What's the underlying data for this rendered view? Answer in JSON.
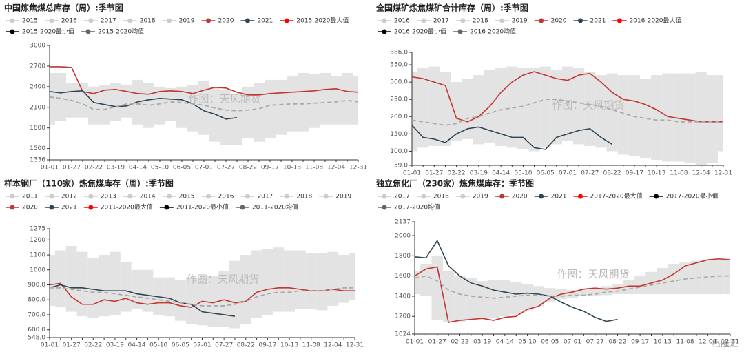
{
  "logo": "格隆汇",
  "chart_data": [
    {
      "type": "line",
      "title": "中国炼焦煤总库存（周）:季节图",
      "watermark": "作图：天风期货",
      "legend": [
        {
          "name": "2015",
          "color": "#cccccc"
        },
        {
          "name": "2016",
          "color": "#cccccc"
        },
        {
          "name": "2017",
          "color": "#cccccc"
        },
        {
          "name": "2018",
          "color": "#cccccc"
        },
        {
          "name": "2019",
          "color": "#cccccc"
        }
      ],
      "categories": [
        "01-01",
        null,
        "01-27",
        null,
        "02-22",
        null,
        "03-19",
        null,
        "04-14",
        null,
        "05-10",
        null,
        "06-05",
        null,
        "07-01",
        null,
        "07-27",
        null,
        "08-22",
        null,
        "09-17",
        null,
        "10-13",
        null,
        "11-08",
        null,
        "12-04",
        null,
        "12-31"
      ],
      "ylim": [
        1336,
        3000
      ],
      "yticks": [
        1336,
        1500,
        1800,
        2100,
        2400,
        2700,
        3000
      ],
      "series": [
        {
          "name": "2020",
          "color": "#c23531",
          "role": "line",
          "values": [
            2690,
            2690,
            2680,
            2330,
            2300,
            2350,
            2360,
            2330,
            2300,
            2290,
            2330,
            2340,
            2330,
            2300,
            2350,
            2390,
            2380,
            2320,
            2280,
            2280,
            2300,
            2310,
            2320,
            2330,
            2340,
            2360,
            2370,
            2330,
            2320
          ]
        },
        {
          "name": "2021",
          "color": "#2f4554",
          "role": "line",
          "values": [
            2330,
            2310,
            2330,
            2340,
            2170,
            2140,
            2110,
            2120,
            2180,
            2210,
            2230,
            2220,
            2210,
            2150,
            2050,
            2000,
            1930,
            1950,
            null,
            null,
            null,
            null,
            null,
            null,
            null,
            null,
            null,
            null,
            null
          ]
        },
        {
          "name": "2015-2020最大值",
          "color": "#ff0000",
          "role": "max",
          "values": [
            2600,
            2600,
            2450,
            2450,
            2400,
            2420,
            2450,
            2430,
            2500,
            2450,
            2400,
            2380,
            2400,
            2420,
            2480,
            2400,
            2350,
            2300,
            2400,
            2450,
            2500,
            2500,
            2560,
            2600,
            2580,
            2600,
            2550,
            2600,
            2550
          ]
        },
        {
          "name": "2015-2020最小值",
          "color": "#000000",
          "role": "min",
          "values": [
            1850,
            1900,
            1950,
            1950,
            1850,
            1850,
            1900,
            1950,
            1850,
            1800,
            1850,
            1900,
            1800,
            1750,
            1700,
            1600,
            1550,
            1550,
            1650,
            1600,
            1650,
            1700,
            1750,
            1750,
            1800,
            1850,
            1850,
            1850,
            1850
          ]
        },
        {
          "name": "2015-2020均值",
          "color": "#666666",
          "role": "mean",
          "values": [
            2250,
            2230,
            2200,
            2150,
            2070,
            2070,
            2110,
            2150,
            2150,
            2130,
            2150,
            2180,
            2170,
            2150,
            2130,
            2090,
            2060,
            2050,
            2060,
            2080,
            2130,
            2140,
            2150,
            2150,
            2160,
            2170,
            2180,
            2200,
            2180
          ]
        }
      ]
    },
    {
      "type": "line",
      "title": "全国煤矿炼焦煤矿合计库存（周）:季节图",
      "watermark": "作图：天风期货",
      "legend": [
        {
          "name": "2016",
          "color": "#cccccc"
        },
        {
          "name": "2017",
          "color": "#cccccc"
        },
        {
          "name": "2018",
          "color": "#cccccc"
        },
        {
          "name": "2019",
          "color": "#cccccc"
        }
      ],
      "categories": [
        "01-01",
        null,
        "01-27",
        null,
        "02-22",
        null,
        "03-19",
        null,
        "04-14",
        null,
        "05-10",
        null,
        "06-05",
        null,
        "07-01",
        null,
        "07-27",
        null,
        "08-22",
        null,
        "09-17",
        null,
        "10-13",
        null,
        "11-08",
        null,
        "12-04",
        null,
        "12-31"
      ],
      "ylim": [
        59,
        386
      ],
      "yticks": [
        {
          "value": 59,
          "label": "59.0"
        },
        {
          "value": 100,
          "label": "100.0"
        },
        {
          "value": 150,
          "label": "150.0"
        },
        {
          "value": 200,
          "label": "200.0"
        },
        {
          "value": 250,
          "label": "250.0"
        },
        {
          "value": 300,
          "label": "300.0"
        },
        {
          "value": 350,
          "label": "350.0"
        },
        {
          "value": 386,
          "label": "386.0"
        }
      ],
      "series": [
        {
          "name": "2020",
          "color": "#c23531",
          "role": "line",
          "values": [
            315,
            310,
            300,
            290,
            195,
            185,
            200,
            230,
            270,
            300,
            320,
            330,
            320,
            310,
            305,
            320,
            325,
            300,
            270,
            250,
            245,
            235,
            220,
            200,
            195,
            190,
            185,
            185,
            185
          ]
        },
        {
          "name": "2021",
          "color": "#2f4554",
          "role": "line",
          "values": [
            175,
            140,
            135,
            125,
            150,
            165,
            170,
            160,
            150,
            140,
            140,
            110,
            105,
            140,
            150,
            160,
            165,
            140,
            120,
            null,
            null,
            null,
            null,
            null,
            null,
            null,
            null,
            null,
            null
          ]
        },
        {
          "name": "2016-2020最大值",
          "color": "#ff0000",
          "role": "max",
          "values": [
            330,
            340,
            345,
            330,
            300,
            310,
            320,
            335,
            340,
            345,
            340,
            340,
            345,
            335,
            345,
            340,
            330,
            320,
            325,
            320,
            320,
            310,
            320,
            325,
            325,
            325,
            330,
            320,
            320
          ]
        },
        {
          "name": "2016-2020最小值",
          "color": "#000000",
          "role": "min",
          "values": [
            100,
            110,
            115,
            115,
            130,
            135,
            120,
            125,
            115,
            110,
            105,
            100,
            110,
            120,
            130,
            120,
            115,
            110,
            100,
            90,
            85,
            80,
            75,
            70,
            70,
            65,
            60,
            65,
            100
          ]
        },
        {
          "name": "2016-2020均值",
          "color": "#666666",
          "role": "mean",
          "values": [
            190,
            185,
            180,
            175,
            180,
            195,
            200,
            210,
            220,
            225,
            230,
            240,
            250,
            250,
            245,
            240,
            235,
            230,
            220,
            210,
            200,
            195,
            190,
            190,
            185,
            185,
            185,
            185,
            185
          ]
        }
      ]
    },
    {
      "type": "line",
      "title": "样本钢厂（110家）炼焦煤库存（周）:季节图",
      "watermark": "作图：天风期货",
      "legend": [
        {
          "name": "2011",
          "color": "#cccccc"
        },
        {
          "name": "2012",
          "color": "#cccccc"
        },
        {
          "name": "2013",
          "color": "#cccccc"
        },
        {
          "name": "2014",
          "color": "#cccccc"
        },
        {
          "name": "2015",
          "color": "#cccccc"
        },
        {
          "name": "2016",
          "color": "#cccccc"
        },
        {
          "name": "2017",
          "color": "#cccccc"
        },
        {
          "name": "2018",
          "color": "#cccccc"
        },
        {
          "name": "2019",
          "color": "#cccccc"
        }
      ],
      "categories": [
        "01-01",
        null,
        "01-27",
        null,
        "02-22",
        null,
        "03-19",
        null,
        "04-14",
        null,
        "05-10",
        null,
        "06-05",
        null,
        "07-01",
        null,
        "07-27",
        null,
        "08-22",
        null,
        "09-17",
        null,
        "10-13",
        null,
        "11-08",
        null,
        "12-04",
        null,
        "12-31"
      ],
      "ylim": [
        548,
        1275
      ],
      "yticks": [
        {
          "value": 548,
          "label": "548.0"
        },
        {
          "value": 600,
          "label": "600.0"
        },
        {
          "value": 700,
          "label": "700.0"
        },
        {
          "value": 800,
          "label": "800.0"
        },
        {
          "value": 900,
          "label": "900.0"
        },
        1000,
        1100,
        1200,
        1275
      ],
      "series": [
        {
          "name": "2020",
          "color": "#c23531",
          "role": "line",
          "values": [
            900,
            910,
            820,
            770,
            770,
            800,
            790,
            810,
            780,
            770,
            780,
            780,
            760,
            750,
            790,
            780,
            800,
            780,
            790,
            850,
            870,
            880,
            880,
            870,
            860,
            860,
            870,
            860,
            860
          ]
        },
        {
          "name": "2021",
          "color": "#2f4554",
          "role": "line",
          "values": [
            880,
            900,
            880,
            880,
            870,
            860,
            860,
            860,
            840,
            830,
            820,
            810,
            780,
            770,
            720,
            710,
            700,
            690,
            null,
            null,
            null,
            null,
            null,
            null,
            null,
            null,
            null,
            null,
            null
          ]
        },
        {
          "name": "2011-2020最大值",
          "color": "#ff0000",
          "role": "max",
          "values": [
            1100,
            1130,
            1160,
            1120,
            1080,
            1100,
            1120,
            1050,
            1000,
            1000,
            950,
            950,
            930,
            950,
            950,
            960,
            990,
            1060,
            1100,
            1130,
            1140,
            1150,
            1130,
            1130,
            1110,
            1110,
            1120,
            1100,
            1110
          ]
        },
        {
          "name": "2011-2020最小值",
          "color": "#000000",
          "role": "min",
          "values": [
            760,
            750,
            720,
            690,
            680,
            690,
            700,
            720,
            740,
            720,
            700,
            690,
            660,
            640,
            630,
            620,
            620,
            610,
            640,
            680,
            700,
            720,
            720,
            740,
            740,
            730,
            760,
            780,
            800
          ]
        },
        {
          "name": "2011-2020均值",
          "color": "#666666",
          "role": "mean",
          "values": [
            880,
            880,
            870,
            860,
            850,
            850,
            840,
            830,
            820,
            810,
            800,
            790,
            780,
            770,
            760,
            760,
            760,
            770,
            790,
            820,
            840,
            850,
            850,
            860,
            860,
            860,
            870,
            880,
            880
          ]
        }
      ]
    },
    {
      "type": "line",
      "title": "独立焦化厂（230家）炼焦煤库存：季节图",
      "watermark": "作图：天风期货",
      "legend": [
        {
          "name": "2017",
          "color": "#cccccc"
        },
        {
          "name": "2018",
          "color": "#cccccc"
        },
        {
          "name": "2019",
          "color": "#cccccc"
        }
      ],
      "categories": [
        "01-01",
        null,
        "01-27",
        null,
        "02-22",
        null,
        "03-19",
        null,
        "04-14",
        null,
        "05-10",
        null,
        "06-05",
        null,
        "07-01",
        null,
        "07-27",
        null,
        "08-22",
        null,
        "09-17",
        null,
        "10-13",
        null,
        "11-08",
        null,
        "12-04",
        null,
        "12-31"
      ],
      "ylim": [
        1024,
        2137
      ],
      "yticks": [
        1024,
        1200,
        1400,
        1600,
        1800,
        2000,
        2137
      ],
      "series": [
        {
          "name": "2020",
          "color": "#c23531",
          "role": "line",
          "values": [
            1600,
            1670,
            1690,
            1140,
            1160,
            1170,
            1180,
            1160,
            1190,
            1200,
            1270,
            1300,
            1380,
            1420,
            1440,
            1470,
            1480,
            1470,
            1480,
            1500,
            1500,
            1530,
            1560,
            1620,
            1700,
            1730,
            1760,
            1770,
            1760
          ]
        },
        {
          "name": "2021",
          "color": "#2f4554",
          "role": "line",
          "values": [
            1790,
            1780,
            1950,
            1700,
            1600,
            1530,
            1500,
            1460,
            1440,
            1420,
            1430,
            1420,
            1400,
            1340,
            1290,
            1250,
            1190,
            1150,
            1170,
            null,
            null,
            null,
            null,
            null,
            null,
            null,
            null,
            null,
            null
          ]
        },
        {
          "name": "2017-2020最大值",
          "color": "#ff0000",
          "role": "max",
          "values": [
            1650,
            1720,
            1800,
            1650,
            1600,
            1580,
            1550,
            1560,
            1560,
            1540,
            1520,
            1500,
            1480,
            1470,
            1460,
            1470,
            1480,
            1500,
            1520,
            1560,
            1600,
            1640,
            1680,
            1720,
            1740,
            1750,
            1760,
            1770,
            1780
          ]
        },
        {
          "name": "2017-2020最小值",
          "color": "#000000",
          "role": "min",
          "values": [
            1420,
            1400,
            1160,
            1140,
            1150,
            1170,
            1180,
            1180,
            1200,
            1220,
            1260,
            1300,
            1340,
            1370,
            1380,
            1400,
            1400,
            1410,
            1420,
            1420,
            1420,
            1420,
            1420,
            1420,
            1420,
            1420,
            1420,
            1420,
            1420
          ]
        },
        {
          "name": "2017-2020均值",
          "color": "#666666",
          "role": "mean",
          "values": [
            1580,
            1600,
            1550,
            1460,
            1420,
            1400,
            1390,
            1380,
            1390,
            1400,
            1410,
            1410,
            1400,
            1400,
            1410,
            1410,
            1420,
            1440,
            1450,
            1470,
            1490,
            1510,
            1530,
            1550,
            1570,
            1580,
            1590,
            1600,
            1600
          ]
        }
      ]
    }
  ]
}
